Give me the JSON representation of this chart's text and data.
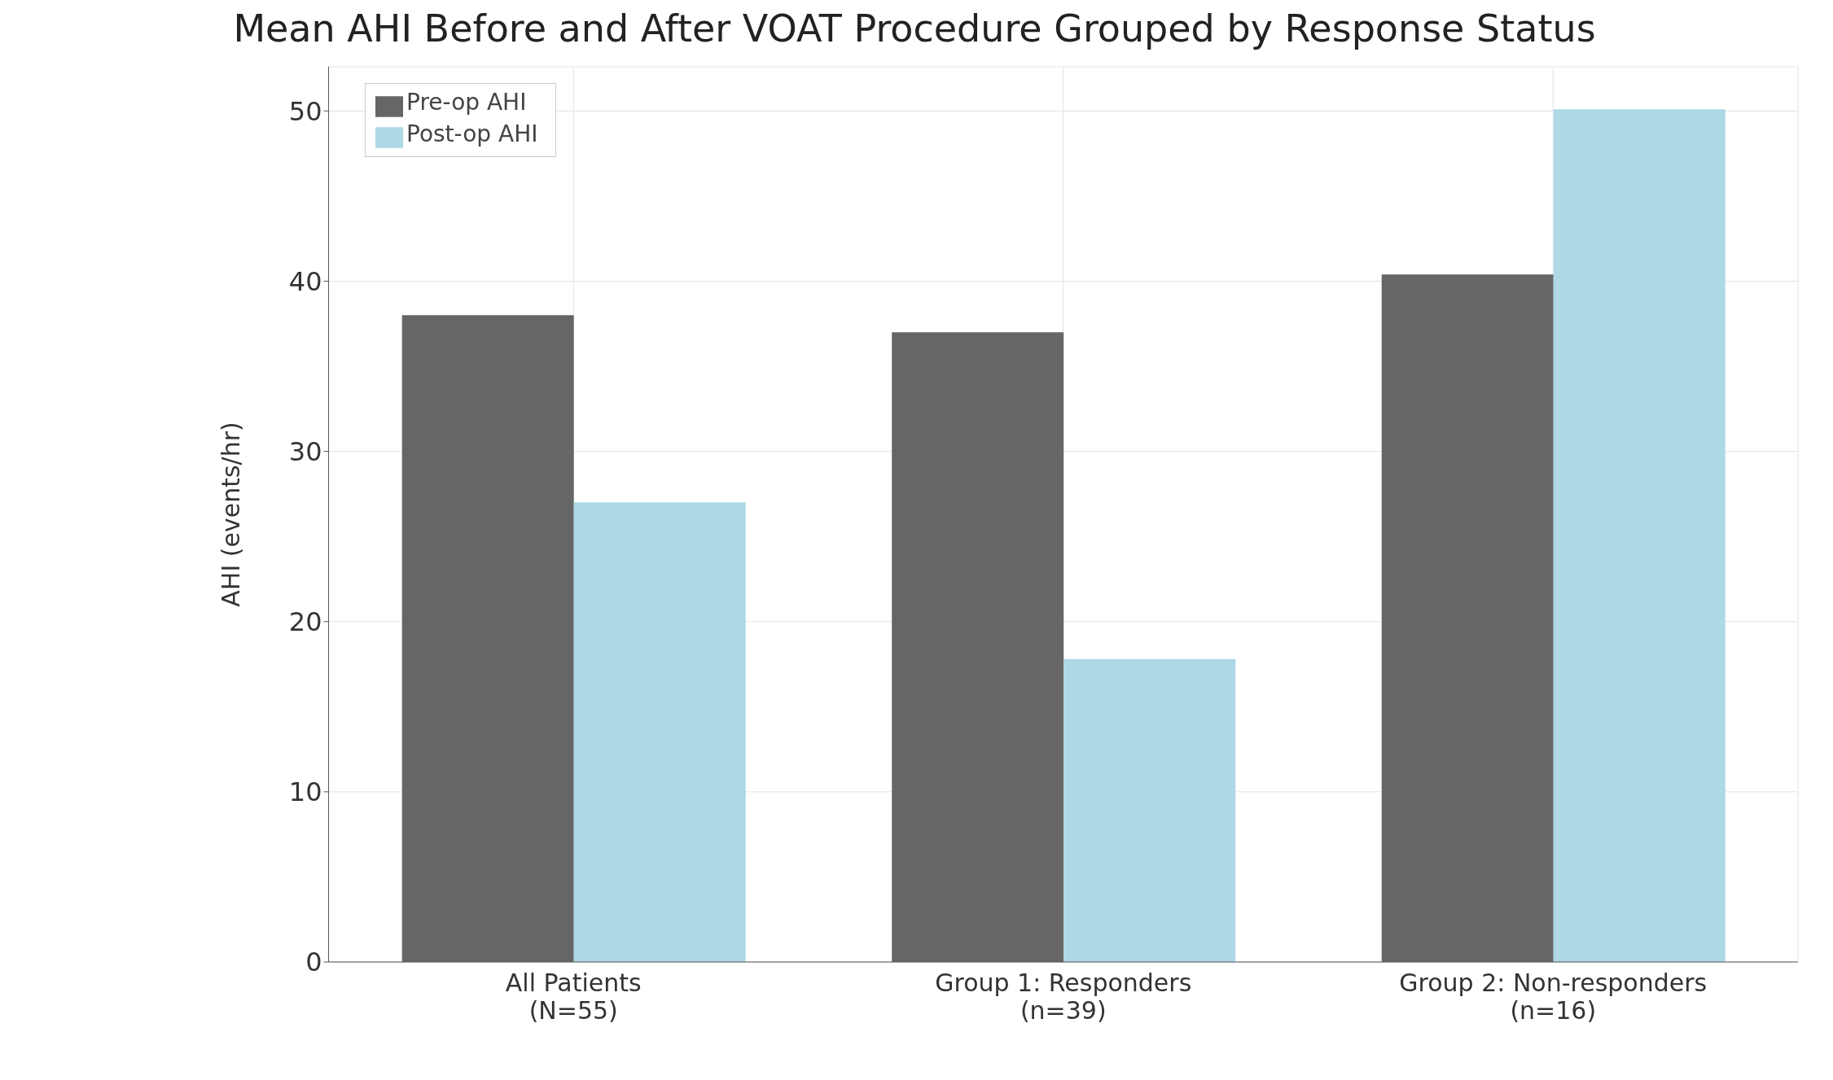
{
  "chart_data": {
    "type": "bar",
    "title": "Mean AHI Before and After VOAT Procedure Grouped by Response Status",
    "ylabel": "AHI (events/hr)",
    "categories": [
      "All Patients\n(N=55)",
      "Group 1: Responders\n(n=39)",
      "Group 2: Non-responders\n(n=16)"
    ],
    "series": [
      {
        "name": "Pre-op AHI",
        "color": "#666666",
        "values": [
          38,
          37,
          40.4
        ]
      },
      {
        "name": "Post-op AHI",
        "color": "#add8e6",
        "values": [
          27,
          17.8,
          50.1
        ]
      }
    ],
    "ylim": [
      0,
      52.6
    ],
    "yticks": [
      0,
      10,
      20,
      30,
      40,
      50
    ],
    "grid": true,
    "legend": "top left"
  }
}
